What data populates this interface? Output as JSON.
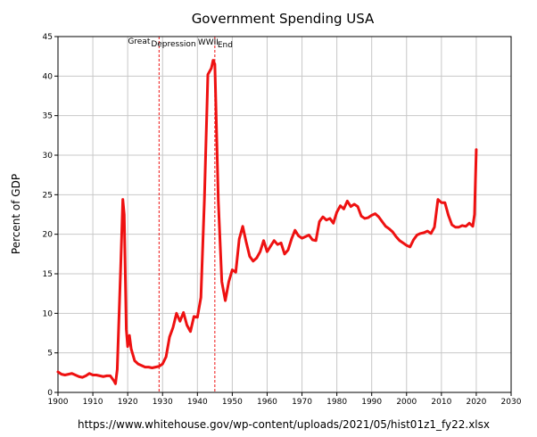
{
  "chart_data": {
    "type": "line",
    "title": "Government Spending USA",
    "xlabel": "",
    "ylabel": "Percent of GDP",
    "source": "https://www.whitehouse.gov/wp-content/uploads/2021/05/hist01z1_fy22.xlsx",
    "xlim": [
      1900,
      2030
    ],
    "ylim": [
      0,
      45
    ],
    "xticks": [
      1900,
      1910,
      1920,
      1930,
      1940,
      1950,
      1960,
      1970,
      1980,
      1990,
      2000,
      2010,
      2020,
      2030
    ],
    "yticks": [
      0,
      5,
      10,
      15,
      20,
      25,
      30,
      35,
      40,
      45
    ],
    "grid": true,
    "line_color": "#ee1111",
    "annotations": [
      {
        "x": 1929,
        "lines": [
          "Great",
          "Depression"
        ]
      },
      {
        "x": 1945,
        "lines": [
          "WWII",
          "End"
        ]
      }
    ],
    "series": [
      {
        "points": [
          [
            1900,
            2.6
          ],
          [
            1901,
            2.3
          ],
          [
            1902,
            2.2
          ],
          [
            1903,
            2.3
          ],
          [
            1904,
            2.4
          ],
          [
            1905,
            2.2
          ],
          [
            1906,
            2.0
          ],
          [
            1907,
            1.9
          ],
          [
            1908,
            2.1
          ],
          [
            1909,
            2.4
          ],
          [
            1910,
            2.2
          ],
          [
            1911,
            2.2
          ],
          [
            1912,
            2.1
          ],
          [
            1913,
            2.0
          ],
          [
            1914,
            2.1
          ],
          [
            1915,
            2.1
          ],
          [
            1916,
            1.5
          ],
          [
            1916.5,
            1.1
          ],
          [
            1917,
            2.9
          ],
          [
            1918,
            16.0
          ],
          [
            1918.6,
            24.4
          ],
          [
            1919,
            22.5
          ],
          [
            1919.6,
            8.0
          ],
          [
            1920,
            5.8
          ],
          [
            1920.5,
            7.2
          ],
          [
            1921,
            5.5
          ],
          [
            1922,
            4.0
          ],
          [
            1923,
            3.6
          ],
          [
            1924,
            3.4
          ],
          [
            1925,
            3.2
          ],
          [
            1926,
            3.2
          ],
          [
            1927,
            3.1
          ],
          [
            1928,
            3.2
          ],
          [
            1929,
            3.3
          ],
          [
            1930,
            3.6
          ],
          [
            1931,
            4.5
          ],
          [
            1932,
            7.0
          ],
          [
            1933,
            8.2
          ],
          [
            1934,
            10.0
          ],
          [
            1935,
            9.0
          ],
          [
            1936,
            10.1
          ],
          [
            1937,
            8.5
          ],
          [
            1938,
            7.7
          ],
          [
            1939,
            9.6
          ],
          [
            1940,
            9.5
          ],
          [
            1941,
            12.0
          ],
          [
            1942,
            24.3
          ],
          [
            1943,
            40.2
          ],
          [
            1944,
            41.0
          ],
          [
            1944.5,
            42.0
          ],
          [
            1945,
            41.5
          ],
          [
            1946,
            24.2
          ],
          [
            1947,
            14.0
          ],
          [
            1948,
            11.6
          ],
          [
            1949,
            14.0
          ],
          [
            1950,
            15.5
          ],
          [
            1951,
            15.2
          ],
          [
            1952,
            19.4
          ],
          [
            1953,
            21.0
          ],
          [
            1954,
            19.0
          ],
          [
            1955,
            17.2
          ],
          [
            1956,
            16.6
          ],
          [
            1957,
            17.0
          ],
          [
            1958,
            17.8
          ],
          [
            1959,
            19.2
          ],
          [
            1960,
            17.8
          ],
          [
            1961,
            18.5
          ],
          [
            1962,
            19.2
          ],
          [
            1963,
            18.7
          ],
          [
            1964,
            18.9
          ],
          [
            1965,
            17.5
          ],
          [
            1966,
            18.0
          ],
          [
            1967,
            19.4
          ],
          [
            1968,
            20.5
          ],
          [
            1969,
            19.8
          ],
          [
            1970,
            19.5
          ],
          [
            1971,
            19.7
          ],
          [
            1972,
            19.9
          ],
          [
            1973,
            19.3
          ],
          [
            1974,
            19.2
          ],
          [
            1975,
            21.6
          ],
          [
            1976,
            22.2
          ],
          [
            1977,
            21.8
          ],
          [
            1978,
            22.0
          ],
          [
            1979,
            21.4
          ],
          [
            1980,
            22.8
          ],
          [
            1981,
            23.6
          ],
          [
            1982,
            23.2
          ],
          [
            1983,
            24.2
          ],
          [
            1984,
            23.5
          ],
          [
            1985,
            23.8
          ],
          [
            1986,
            23.5
          ],
          [
            1987,
            22.3
          ],
          [
            1988,
            22.0
          ],
          [
            1989,
            22.1
          ],
          [
            1990,
            22.4
          ],
          [
            1991,
            22.6
          ],
          [
            1992,
            22.2
          ],
          [
            1993,
            21.6
          ],
          [
            1994,
            21.0
          ],
          [
            1995,
            20.7
          ],
          [
            1996,
            20.3
          ],
          [
            1997,
            19.7
          ],
          [
            1998,
            19.2
          ],
          [
            1999,
            18.9
          ],
          [
            2000,
            18.6
          ],
          [
            2001,
            18.4
          ],
          [
            2002,
            19.3
          ],
          [
            2003,
            19.9
          ],
          [
            2004,
            20.1
          ],
          [
            2005,
            20.2
          ],
          [
            2006,
            20.4
          ],
          [
            2007,
            20.1
          ],
          [
            2008,
            20.9
          ],
          [
            2009,
            24.4
          ],
          [
            2010,
            24.0
          ],
          [
            2011,
            24.0
          ],
          [
            2012,
            22.4
          ],
          [
            2013,
            21.2
          ],
          [
            2014,
            20.9
          ],
          [
            2015,
            20.9
          ],
          [
            2016,
            21.1
          ],
          [
            2017,
            21.0
          ],
          [
            2018,
            21.4
          ],
          [
            2019,
            21.0
          ],
          [
            2019.5,
            22.5
          ],
          [
            2020,
            30.7
          ]
        ]
      }
    ]
  }
}
